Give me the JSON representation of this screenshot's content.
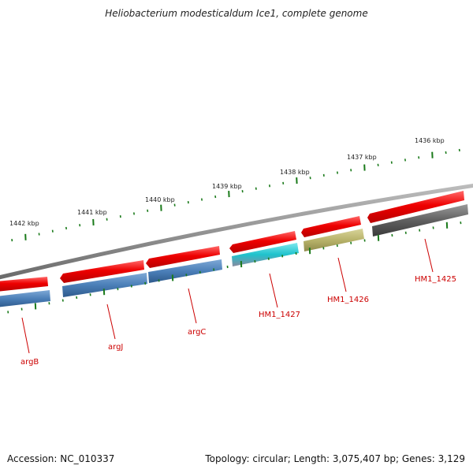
{
  "title": "Heliobacterium modesticaldum Ice1, complete genome",
  "footer": {
    "accession": "Accession: NC_010337",
    "summary": "Topology: circular; Length: 3,075,407 bp; Genes: 3,129"
  },
  "scale_labels": [
    "1436 kbp",
    "1437 kbp",
    "1438 kbp",
    "1439 kbp",
    "1440 kbp",
    "1441 kbp",
    "1442 kbp"
  ],
  "gene_labels": [
    "HM1_1425",
    "HM1_1426",
    "HM1_1427",
    "argC",
    "argJ",
    "argB"
  ],
  "colors": {
    "backbone": "#8c8c8c",
    "forward_feature": "#ee0000",
    "cds_default": "#4b7fb8",
    "cds_cyan": "#1fc2cc",
    "cds_olive": "#b8b36a",
    "cds_dark": "#606060",
    "tick": "#1a7a1a",
    "label": "#cc0000"
  }
}
